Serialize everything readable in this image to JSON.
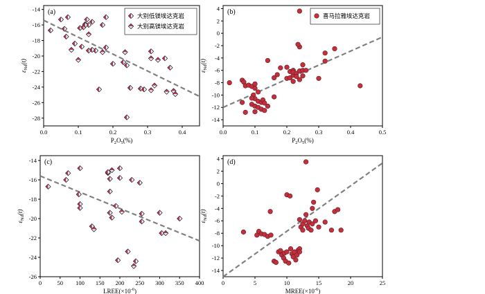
{
  "colors": {
    "diamond_fill": "#c13a4a",
    "diamond_edge": "#3a2d40",
    "circle_fill": "#c1303c",
    "circle_edge": "#6a1a22",
    "trend": "#808080"
  },
  "chart_data": [
    {
      "id": "a",
      "type": "scatter",
      "panel_label": "(a)",
      "xlabel_main": "P",
      "xlabel_sub1": "2",
      "xlabel_mid": "O",
      "xlabel_sub2": "5",
      "xlabel_tail": "(%)",
      "ylabel_main": "ε",
      "ylabel_sub": "Nd",
      "ylabel_tail": "(t)",
      "xlim": [
        0,
        0.45
      ],
      "ylim": [
        -29,
        -13.5
      ],
      "xticks": [
        0,
        0.1,
        0.2,
        0.3,
        0.4
      ],
      "xtick_labels": [
        "0.0",
        "0.1",
        "0.2",
        "0.3",
        "0.4"
      ],
      "yticks": [
        -28,
        -26,
        -24,
        -22,
        -20,
        -18,
        -16,
        -14
      ],
      "ytick_labels": [
        "-28",
        "-26",
        "-24",
        "-22",
        "-20",
        "-18",
        "-16",
        "-14"
      ],
      "legend_position": "top-right",
      "series": [
        {
          "name": "大别低镁埃达克岩",
          "marker": "diamond",
          "points": [
            [
              0.02,
              -16.7
            ],
            [
              0.05,
              -15.3
            ],
            [
              0.06,
              -16.5
            ],
            [
              0.07,
              -15.0
            ],
            [
              0.065,
              -17.5
            ],
            [
              0.09,
              -18.4
            ],
            [
              0.105,
              -16.4
            ],
            [
              0.115,
              -16.3
            ],
            [
              0.12,
              -15.9
            ],
            [
              0.125,
              -15.3
            ],
            [
              0.13,
              -16.0
            ],
            [
              0.14,
              -15.6
            ],
            [
              0.15,
              -19.3
            ],
            [
              0.13,
              -19.3
            ],
            [
              0.14,
              -19.2
            ],
            [
              0.12,
              -16.0
            ],
            [
              0.16,
              -24.3
            ],
            [
              0.17,
              -16.0
            ],
            [
              0.18,
              -15.0
            ],
            [
              0.18,
              -18.9
            ],
            [
              0.2,
              -21.0
            ],
            [
              0.11,
              -18.8
            ],
            [
              0.24,
              -27.9
            ],
            [
              0.24,
              -21.2
            ],
            [
              0.23,
              -20.8
            ],
            [
              0.28,
              -24.2
            ],
            [
              0.29,
              -24.3
            ],
            [
              0.31,
              -19.4
            ],
            [
              0.25,
              -24.1
            ],
            [
              0.35,
              -20.3
            ],
            [
              0.365,
              -21.5
            ]
          ]
        },
        {
          "name": "大别高镁埃达克岩",
          "marker": "diamond-half",
          "points": [
            [
              0.08,
              -19.2
            ],
            [
              0.1,
              -20.5
            ],
            [
              0.13,
              -17.2
            ],
            [
              0.17,
              -19.5
            ],
            [
              0.235,
              -19.5
            ],
            [
              0.31,
              -20.3
            ],
            [
              0.31,
              -24.4
            ],
            [
              0.355,
              -24.6
            ],
            [
              0.32,
              -23.8
            ],
            [
              0.375,
              -24.5
            ],
            [
              0.38,
              -24.9
            ],
            [
              0.33,
              -20.5
            ]
          ]
        }
      ],
      "trendline": [
        [
          0,
          -15.4
        ],
        [
          0.45,
          -25.2
        ]
      ]
    },
    {
      "id": "b",
      "type": "scatter",
      "panel_label": "(b)",
      "xlabel_main": "P",
      "xlabel_sub1": "2",
      "xlabel_mid": "O",
      "xlabel_sub2": "5",
      "xlabel_tail": "(%)",
      "ylabel_main": "ε",
      "ylabel_sub": "Nd",
      "ylabel_tail": "(t)",
      "xlim": [
        0,
        0.5
      ],
      "ylim": [
        -15,
        4.5
      ],
      "xticks": [
        0,
        0.1,
        0.2,
        0.3,
        0.4,
        0.5
      ],
      "xtick_labels": [
        "0.0",
        "0.1",
        "0.2",
        "0.3",
        "0.4",
        "0.5"
      ],
      "yticks": [
        -14,
        -12,
        -10,
        -8,
        -6,
        -4,
        -2,
        0,
        2,
        4
      ],
      "ytick_labels": [
        "-14",
        "-12",
        "-10",
        "-8",
        "-6",
        "-4",
        "-2",
        "0",
        "2",
        "4"
      ],
      "legend_position": "top-right",
      "series": [
        {
          "name": "喜马拉雅埃达克岩",
          "marker": "circle",
          "points": [
            [
              0.02,
              -8.0
            ],
            [
              0.06,
              -7.6
            ],
            [
              0.065,
              -7.9
            ],
            [
              0.07,
              -8.5
            ],
            [
              0.08,
              -8.4
            ],
            [
              0.09,
              -8.6
            ],
            [
              0.1,
              -8.2
            ],
            [
              0.1,
              -8.9
            ],
            [
              0.11,
              -9.5
            ],
            [
              0.095,
              -10.0
            ],
            [
              0.1,
              -10.6
            ],
            [
              0.11,
              -11.0
            ],
            [
              0.12,
              -11.2
            ],
            [
              0.125,
              -10.8
            ],
            [
              0.13,
              -11.3
            ],
            [
              0.09,
              -11.5
            ],
            [
              0.1,
              -11.8
            ],
            [
              0.11,
              -12.0
            ],
            [
              0.12,
              -12.3
            ],
            [
              0.13,
              -12.5
            ],
            [
              0.1,
              -12.7
            ],
            [
              0.07,
              -12.8
            ],
            [
              0.06,
              -11.2
            ],
            [
              0.14,
              -11.8
            ],
            [
              0.09,
              -10.5
            ],
            [
              0.14,
              -4.4
            ],
            [
              0.17,
              -6.7
            ],
            [
              0.16,
              -7.2
            ],
            [
              0.16,
              -10.3
            ],
            [
              0.18,
              -5.6
            ],
            [
              0.2,
              -7.3
            ],
            [
              0.21,
              -6.2
            ],
            [
              0.21,
              -7.2
            ],
            [
              0.22,
              -6.0
            ],
            [
              0.22,
              -6.8
            ],
            [
              0.22,
              -6.3
            ],
            [
              0.23,
              -6.5
            ],
            [
              0.23,
              -7.0
            ],
            [
              0.24,
              -6.1
            ],
            [
              0.24,
              -7.5
            ],
            [
              0.25,
              -6.0
            ],
            [
              0.25,
              -6.9
            ],
            [
              0.25,
              -5.1
            ],
            [
              0.24,
              -2.2
            ],
            [
              0.235,
              -1.8
            ],
            [
              0.24,
              3.6
            ],
            [
              0.3,
              -7.3
            ],
            [
              0.32,
              -4.5
            ],
            [
              0.32,
              -3.2
            ],
            [
              0.35,
              -2.5
            ],
            [
              0.43,
              -8.5
            ],
            [
              0.26,
              -6.0
            ],
            [
              0.22,
              -7.8
            ],
            [
              0.2,
              -5.5
            ]
          ]
        }
      ],
      "trendline": [
        [
          0,
          -12.0
        ],
        [
          0.5,
          -0.6
        ]
      ]
    },
    {
      "id": "c",
      "type": "scatter",
      "panel_label": "(c)",
      "xlabel_main": "LREE(×10",
      "xlabel_sup": "-6",
      "xlabel_tail": ")",
      "ylabel_main": "ε",
      "ylabel_sub": "Nd",
      "ylabel_tail": "(t)",
      "xlim": [
        0,
        400
      ],
      "ylim": [
        -26,
        -13.5
      ],
      "xticks": [
        0,
        50,
        100,
        150,
        200,
        250,
        300,
        350,
        400
      ],
      "xtick_labels": [
        "0",
        "50",
        "100",
        "150",
        "200",
        "250",
        "300",
        "350",
        "400"
      ],
      "yticks": [
        -26,
        -24,
        -22,
        -20,
        -18,
        -16,
        -14
      ],
      "ytick_labels": [
        "-26",
        "-24",
        "-22",
        "-20",
        "-18",
        "-16",
        "-14"
      ],
      "series": [
        {
          "name": "大别低镁埃达克岩",
          "marker": "diamond",
          "points": [
            [
              20,
              -16.7
            ],
            [
              70,
              -15.3
            ],
            [
              65,
              -16.0
            ],
            [
              100,
              -14.8
            ],
            [
              97,
              -17.5
            ],
            [
              100,
              -18.5
            ],
            [
              100,
              -18.9
            ],
            [
              130,
              -20.8
            ],
            [
              170,
              -15.3
            ],
            [
              175,
              -15.9
            ],
            [
              170,
              -15.2
            ],
            [
              175,
              -17.2
            ],
            [
              175,
              -19.4
            ],
            [
              180,
              -19.9
            ],
            [
              190,
              -18.7
            ],
            [
              200,
              -14.8
            ],
            [
              200,
              -15.8
            ],
            [
              195,
              -24.3
            ],
            [
              220,
              -23.4
            ],
            [
              230,
              -16.0
            ],
            [
              240,
              -24.4
            ],
            [
              250,
              -16.3
            ],
            [
              255,
              -19.5
            ],
            [
              255,
              -20.3
            ],
            [
              300,
              -19.4
            ],
            [
              305,
              -21.5
            ],
            [
              350,
              -20.0
            ]
          ]
        },
        {
          "name": "大别高镁埃达克岩",
          "marker": "diamond-half",
          "points": [
            [
              135,
              -21.1
            ],
            [
              180,
              -15.0
            ],
            [
              205,
              -19.3
            ],
            [
              235,
              -24.9
            ],
            [
              315,
              -21.5
            ]
          ]
        }
      ],
      "trendline": [
        [
          0,
          -15.6
        ],
        [
          400,
          -22.3
        ]
      ]
    },
    {
      "id": "d",
      "type": "scatter",
      "panel_label": "(d)",
      "xlabel_main": "MREE(×10",
      "xlabel_sup": "-6",
      "xlabel_tail": ")",
      "ylabel_main": "ε",
      "ylabel_sub": "Nd",
      "ylabel_tail": "(t)",
      "xlim": [
        0,
        25
      ],
      "ylim": [
        -15,
        4.5
      ],
      "xticks": [
        0,
        5,
        10,
        15,
        20,
        25
      ],
      "xtick_labels": [
        "0",
        "5",
        "10",
        "15",
        "20",
        "25"
      ],
      "yticks": [
        -14,
        -12,
        -10,
        -8,
        -6,
        -4,
        -2,
        0,
        2,
        4
      ],
      "ytick_labels": [
        "-14",
        "-12",
        "-10",
        "-8",
        "-6",
        "-4",
        "-2",
        "0",
        "2",
        "4"
      ],
      "series": [
        {
          "name": "喜马拉雅埃达克岩",
          "marker": "circle",
          "points": [
            [
              3.2,
              -7.8
            ],
            [
              5.3,
              -8.3
            ],
            [
              5.6,
              -7.7
            ],
            [
              6.0,
              -8.1
            ],
            [
              6.5,
              -8.2
            ],
            [
              7.0,
              -8.5
            ],
            [
              7.4,
              -4.5
            ],
            [
              7.5,
              -8.3
            ],
            [
              8.0,
              -12.5
            ],
            [
              8.3,
              -12.7
            ],
            [
              8.7,
              -11.0
            ],
            [
              9.0,
              -10.8
            ],
            [
              9.2,
              -11.5
            ],
            [
              9.5,
              -12.0
            ],
            [
              9.6,
              -11.2
            ],
            [
              9.8,
              -12.5
            ],
            [
              10.0,
              -1.8
            ],
            [
              10.0,
              -11.0
            ],
            [
              10.3,
              -12.8
            ],
            [
              10.5,
              -2.0
            ],
            [
              10.6,
              -10.5
            ],
            [
              10.8,
              -11.3
            ],
            [
              11.0,
              -11.8
            ],
            [
              11.2,
              -11.0
            ],
            [
              11.4,
              -12.3
            ],
            [
              11.6,
              -11.5
            ],
            [
              11.8,
              -10.7
            ],
            [
              12.0,
              -10.5
            ],
            [
              12.0,
              -11.0
            ],
            [
              12.2,
              -7.0
            ],
            [
              12.5,
              -6.5
            ],
            [
              12.5,
              -7.5
            ],
            [
              12.8,
              -6.0
            ],
            [
              13.0,
              -5.0
            ],
            [
              13.0,
              3.5
            ],
            [
              13.2,
              -6.8
            ],
            [
              13.4,
              -7.2
            ],
            [
              13.5,
              -6.2
            ],
            [
              13.8,
              -7.5
            ],
            [
              14.0,
              -6.5
            ],
            [
              14.2,
              -3.0
            ],
            [
              14.5,
              -6.0
            ],
            [
              14.8,
              -1.0
            ],
            [
              15.0,
              -7.0
            ],
            [
              14.0,
              -4.0
            ],
            [
              16.0,
              -6.2
            ],
            [
              17.0,
              -7.5
            ],
            [
              17.5,
              -4.5
            ],
            [
              18.0,
              -4.2
            ],
            [
              18.5,
              -7.5
            ],
            [
              12.0,
              -5.8
            ]
          ]
        }
      ],
      "trendline": [
        [
          0,
          -15.0
        ],
        [
          25,
          3.3
        ]
      ]
    }
  ]
}
